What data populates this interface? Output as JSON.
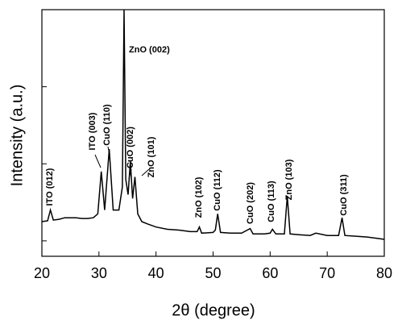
{
  "chart_data": {
    "type": "line",
    "xlabel": "2θ (degree)",
    "ylabel": "Intensity (a.u.)",
    "xlim": [
      20,
      80
    ],
    "xticks": [
      20,
      30,
      40,
      50,
      60,
      70,
      80
    ],
    "ylim": [
      0,
      3.2
    ],
    "yticks": [
      0.2,
      1.2,
      2.2
    ],
    "series": [
      {
        "color": "#000000",
        "x": [
          20,
          21,
          21.5,
          22,
          23,
          24,
          25,
          26,
          27,
          28,
          29,
          29.8,
          30.4,
          31,
          31.8,
          32.5,
          33.5,
          34.1,
          34.4,
          34.7,
          35.1,
          35.5,
          35.9,
          36.3,
          36.8,
          37.5,
          38.5,
          40,
          42,
          44,
          46,
          47.2,
          47.6,
          48,
          50,
          50.4,
          50.8,
          51.3,
          53,
          55,
          56.5,
          57,
          59,
          60,
          60.4,
          61,
          62.5,
          63,
          63.5,
          65,
          67,
          68,
          70,
          72,
          72.6,
          73.1,
          75,
          77,
          79,
          80
        ],
        "values": [
          0.45,
          0.46,
          0.6,
          0.47,
          0.48,
          0.5,
          0.5,
          0.5,
          0.49,
          0.49,
          0.5,
          0.55,
          1.1,
          0.6,
          1.39,
          0.6,
          0.6,
          0.9,
          3.2,
          1.0,
          0.8,
          1.23,
          0.75,
          1.03,
          0.55,
          0.45,
          0.42,
          0.38,
          0.35,
          0.34,
          0.32,
          0.32,
          0.38,
          0.3,
          0.31,
          0.34,
          0.55,
          0.31,
          0.3,
          0.3,
          0.36,
          0.29,
          0.29,
          0.3,
          0.35,
          0.29,
          0.29,
          0.78,
          0.29,
          0.28,
          0.27,
          0.3,
          0.27,
          0.27,
          0.5,
          0.27,
          0.26,
          0.25,
          0.23,
          0.22
        ]
      }
    ],
    "annotations": [
      "ITO (012)",
      "ITO (003)",
      "CuO (110)",
      "ZnO (002)",
      "CuO (002)",
      "ZnO (101)",
      "ZnO (102)",
      "CuO (112)",
      "CuO (202)",
      "CuO (113)",
      "ZnO (103)",
      "CuO (311)"
    ]
  }
}
